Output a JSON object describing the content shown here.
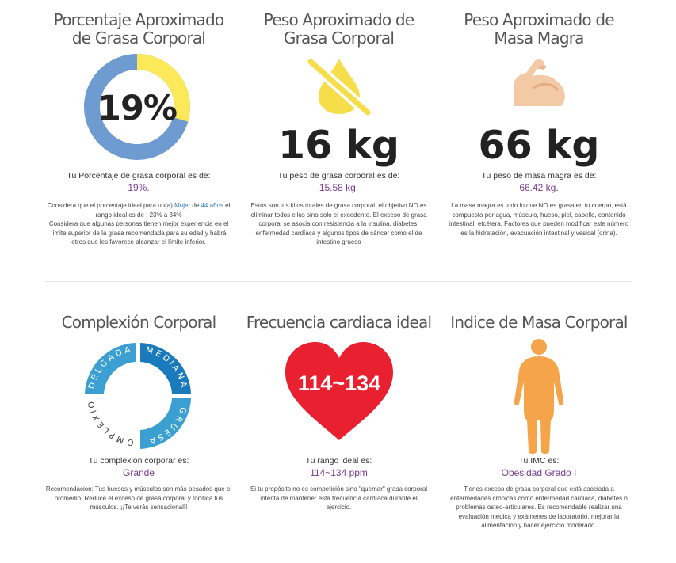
{
  "fat_pct": {
    "title": "Porcentaje Aproximado de Grasa Corporal",
    "big": "19%",
    "fraction": 0.19,
    "colors": {
      "fat": "#fbe95a",
      "lean": "#6e9bd0"
    },
    "label": "Tu Porcentaje de grasa corporal es de:",
    "value": "19%.",
    "desc_1": "Considera que el porcentaje ideal para un(a) ",
    "desc_gender": "Mujer",
    "desc_2": " de ",
    "desc_age": "44 años",
    "desc_3": " el rango ideal es de : 23% a 34%",
    "desc_4": "Considera que algunas personas tienen mejor experiencia en el límite superior de la grasa recomendada para su edad y habrá otros que les favorece alcanzar el límite inferior."
  },
  "fat_kg": {
    "title": "Peso Aproximado de Grasa Corporal",
    "icon": "no-fat-drop-icon",
    "big": "16 kg",
    "label": "Tu peso de grasa corporal es de:",
    "value": "15.58 kg.",
    "desc": "Estos son tus kilos totales de grasa corporal, el objetivo NO es eliminar todos ellos sino solo el excedente. El exceso de grasa corporal se asocia con resistencia a la insulina, diabetes, enfermedad cardíaca y algunos tipos de cáncer como el de intestino grueso"
  },
  "lean_kg": {
    "title": "Peso Aproximado de Masa Magra",
    "icon": "flexed-arm-icon",
    "big": "66 kg",
    "label": "Tu peso de masa magra es de:",
    "value": "66.42 kg.",
    "desc": "La masa magra es todo lo que NO es grasa en tu cuerpo, está compuesta por agua, músculo, hueso, piel, cabello, contenido intestinal, etcétera. Factores que pueden modificar este número es la hidratación, evacuación intestinal y vesical (orina)."
  },
  "complexion": {
    "title": "Complexión Corporal",
    "segments": [
      "DELGADA",
      "MEDIANA",
      "GRUESA",
      "COMPLEXION"
    ],
    "label": "Tu complexión corporar es:",
    "value": "Grande",
    "desc": "Recomendacion: Tus huesos y músculos son más pesados que el promedio. Reduce el exceso de grasa corporal y tonifica tus músculos. ¡¡Te verás sensacional!!"
  },
  "heart": {
    "title": "Frecuencia cardiaca ideal",
    "big": "114~134",
    "label": "Tu rango ideal es:",
    "value": "114~134 ppm",
    "desc": "Si tu propósito no es competición sino \"quemar\" grasa corporal intenta de mantener esta frecuencia cardíaca durante el ejercicio."
  },
  "imc": {
    "title": "Indice de Masa Corporal",
    "icon": "body-silhouette-icon",
    "label": "Tu IMC es:",
    "value": "Obesidad Grado I",
    "desc": "Tienes exceso de grasa corporal que está asociada a enfermedades crónicas como enfermedad cardiaca, diabetes o problemas osteo-articulares. Es recomendable realizar una evaluación médica y exámenes de laboratorio, mejorar la alimentación y hacer ejercicio moderado."
  }
}
